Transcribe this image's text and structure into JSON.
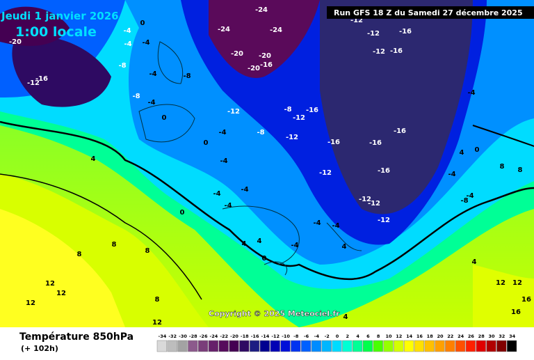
{
  "header": {
    "date": "Jeudi 1 janvier 2026",
    "time": "1:00 locale",
    "run": "Run GFS 18 Z du Samedi 27 décembre 2025",
    "copyright": "Copyright © 2025 Meteociel.fr"
  },
  "footer": {
    "title": "Température 850hPa",
    "lead": "(+ 102h)"
  },
  "legend": {
    "values": [
      -34,
      -32,
      -30,
      -28,
      -26,
      -24,
      -22,
      -20,
      -18,
      -16,
      -14,
      -12,
      -10,
      -8,
      -6,
      -4,
      -2,
      0,
      2,
      4,
      6,
      8,
      10,
      12,
      14,
      16,
      18,
      20,
      22,
      24,
      26,
      28,
      30,
      32,
      34
    ],
    "colors": [
      "#d9d9d9",
      "#bdbdbd",
      "#a3a3a3",
      "#8c5a8c",
      "#7a3d7a",
      "#66206a",
      "#560c5c",
      "#440052",
      "#2e0a62",
      "#1c1c82",
      "#000090",
      "#0000b4",
      "#0010d8",
      "#0034f0",
      "#0060ff",
      "#008cff",
      "#00b6ff",
      "#00dcff",
      "#00ffd4",
      "#00ff96",
      "#00ff4a",
      "#48ff00",
      "#96ff00",
      "#d4ff00",
      "#ffff00",
      "#ffe000",
      "#ffc000",
      "#ffa000",
      "#ff8000",
      "#ff5000",
      "#ff2000",
      "#e00000",
      "#b00000",
      "#800000",
      "#000000"
    ]
  },
  "map_labels": [
    -20,
    -12,
    -16,
    -8,
    -4,
    -4,
    0,
    -4,
    -8,
    -4,
    -4,
    0,
    -12,
    -24,
    -24,
    -24,
    -20,
    -20,
    -16,
    -20,
    -12,
    -16,
    -12,
    -12,
    -16,
    -8,
    -8,
    -12,
    -4,
    -8,
    -12,
    -16,
    -16,
    -16,
    -16,
    -12,
    -16,
    -12,
    -12,
    -12,
    -4,
    -4,
    0,
    0,
    -4,
    -4,
    -4,
    4,
    4,
    4,
    8,
    8,
    8,
    12,
    12,
    12,
    8,
    4,
    -4,
    0,
    4,
    -4,
    0,
    -4,
    -4,
    4,
    8,
    8,
    12,
    16,
    12,
    16,
    -4,
    -8,
    4,
    12
  ]
}
